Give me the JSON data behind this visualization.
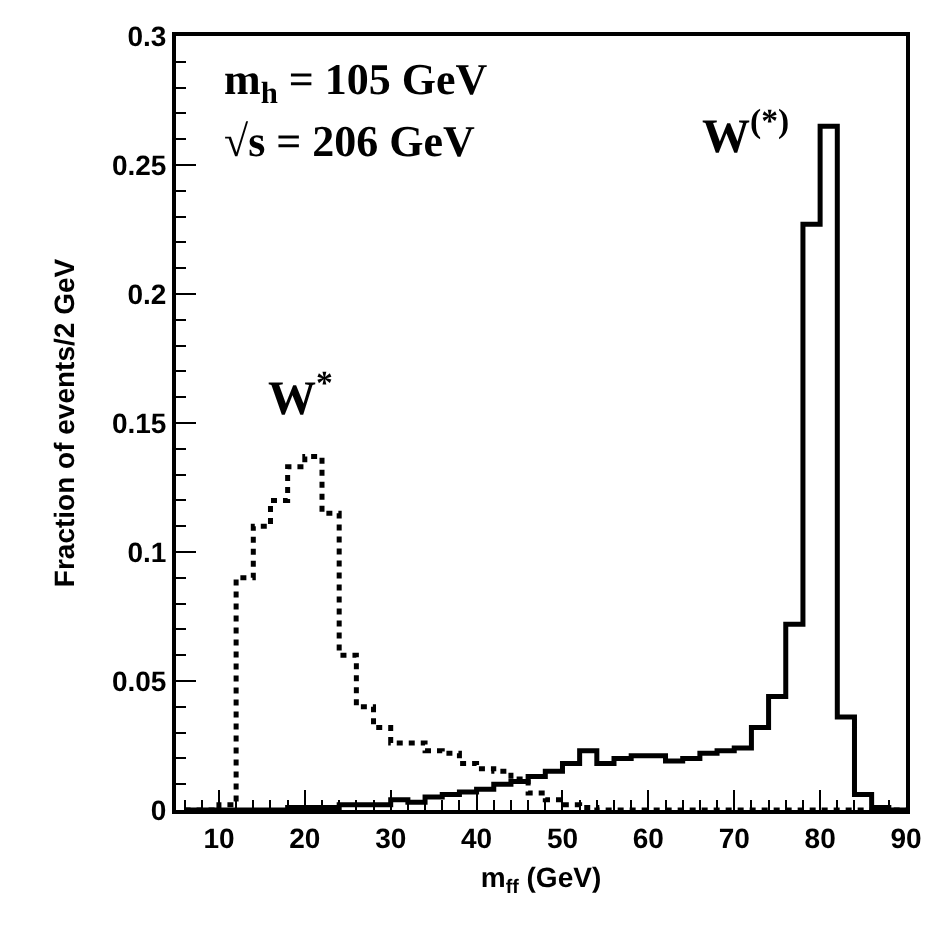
{
  "chart_data": {
    "type": "histogram",
    "xlabel": "m$_{ff}$ (GeV)",
    "ylabel": "Fraction of events/2 GeV",
    "annotations": [
      "m$_{h}$ = 105 GeV",
      "√s = 206 GeV"
    ],
    "bins": [
      6,
      8,
      10,
      12,
      14,
      16,
      18,
      20,
      22,
      24,
      26,
      28,
      30,
      32,
      34,
      36,
      38,
      40,
      42,
      44,
      46,
      48,
      50,
      52,
      54,
      56,
      58,
      60,
      62,
      64,
      66,
      68,
      70,
      72,
      74,
      76,
      78,
      80,
      82,
      84,
      86,
      88,
      90
    ],
    "series": [
      {
        "name": "W$^{*}$",
        "color": "#000000",
        "line_style": "dotted",
        "values": [
          0,
          0,
          0.002,
          0.09,
          0.11,
          0.12,
          0.133,
          0.137,
          0.115,
          0.06,
          0.04,
          0.032,
          0.026,
          0.026,
          0.023,
          0.022,
          0.018,
          0.016,
          0.015,
          0.012,
          0.0066,
          0.004,
          0.002,
          0.001,
          0,
          0,
          0,
          0,
          0,
          0,
          0,
          0,
          0,
          0,
          0,
          0,
          0,
          0,
          0,
          0,
          0,
          0
        ]
      },
      {
        "name": "W$^{(*)}$",
        "color": "#000000",
        "line_style": "solid",
        "values": [
          0,
          0,
          0,
          0,
          0,
          0,
          0.001,
          0.001,
          0.001,
          0.002,
          0.002,
          0.002,
          0.004,
          0.003,
          0.005,
          0.006,
          0.007,
          0.008,
          0.01,
          0.011,
          0.013,
          0.015,
          0.018,
          0.023,
          0.018,
          0.02,
          0.021,
          0.021,
          0.019,
          0.02,
          0.022,
          0.023,
          0.024,
          0.032,
          0.044,
          0.072,
          0.227,
          0.265,
          0.036,
          0.006,
          0.001,
          0
        ]
      }
    ],
    "xlim": [
      5,
      90
    ],
    "xticks": [
      10,
      20,
      30,
      40,
      50,
      60,
      70,
      80,
      90
    ],
    "ylim": [
      0,
      0.3
    ],
    "yticks": [
      0,
      0.05,
      0.1,
      0.15,
      0.2,
      0.25,
      0.3
    ],
    "legend": false
  }
}
